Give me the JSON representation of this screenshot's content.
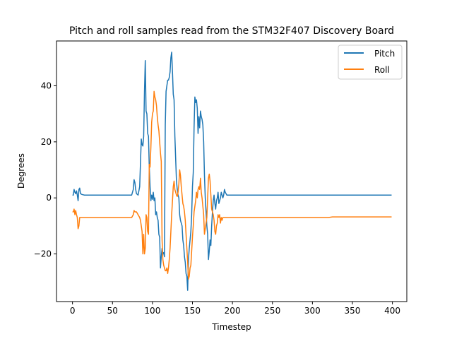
{
  "chart_data": {
    "type": "line",
    "title": "Pitch and roll samples read from the STM32F407 Discovery Board",
    "xlabel": "Timestep",
    "ylabel": "Degrees",
    "xlim": [
      -20,
      418
    ],
    "ylim": [
      -37,
      56
    ],
    "xticks": [
      0,
      50,
      100,
      150,
      200,
      250,
      300,
      350,
      400
    ],
    "yticks": [
      -20,
      0,
      20,
      40
    ],
    "grid": false,
    "legend_position": "upper right",
    "series": [
      {
        "name": "Pitch",
        "color": "#1f77b4",
        "points": [
          [
            0,
            1
          ],
          [
            1,
            1
          ],
          [
            2,
            3
          ],
          [
            3,
            2
          ],
          [
            4,
            1.5
          ],
          [
            5,
            2.5
          ],
          [
            6,
            1
          ],
          [
            7,
            -1
          ],
          [
            8,
            3
          ],
          [
            9,
            3.5
          ],
          [
            10,
            1.5
          ],
          [
            12,
            1.2
          ],
          [
            15,
            1
          ],
          [
            30,
            1
          ],
          [
            50,
            1
          ],
          [
            70,
            1
          ],
          [
            74,
            1
          ],
          [
            76,
            3
          ],
          [
            77,
            6.5
          ],
          [
            78,
            5.5
          ],
          [
            79,
            3
          ],
          [
            80,
            1.5
          ],
          [
            82,
            1
          ],
          [
            84,
            4
          ],
          [
            86,
            21
          ],
          [
            87,
            19
          ],
          [
            88,
            18.5
          ],
          [
            89,
            22
          ],
          [
            90,
            38
          ],
          [
            91,
            49
          ],
          [
            92,
            31
          ],
          [
            93,
            30
          ],
          [
            94,
            23
          ],
          [
            95,
            22
          ],
          [
            96,
            11
          ],
          [
            97,
            4
          ],
          [
            98,
            -1
          ],
          [
            99,
            1
          ],
          [
            100,
            -0.5
          ],
          [
            101,
            2
          ],
          [
            102,
            -1
          ],
          [
            103,
            0
          ],
          [
            104,
            -6
          ],
          [
            105,
            -5
          ],
          [
            106,
            -7
          ],
          [
            107,
            -8
          ],
          [
            108,
            -13
          ],
          [
            109,
            -14
          ],
          [
            110,
            -25
          ],
          [
            111,
            -21
          ],
          [
            112,
            -18
          ],
          [
            113,
            -20
          ],
          [
            114,
            -19.5
          ],
          [
            115,
            -21
          ],
          [
            116,
            26
          ],
          [
            117,
            38
          ],
          [
            118,
            40
          ],
          [
            119,
            42
          ],
          [
            120,
            42
          ],
          [
            121,
            43
          ],
          [
            122,
            45
          ],
          [
            123,
            50
          ],
          [
            124,
            52
          ],
          [
            125,
            45
          ],
          [
            126,
            37
          ],
          [
            127,
            35
          ],
          [
            128,
            22
          ],
          [
            129,
            14
          ],
          [
            130,
            6
          ],
          [
            131,
            3
          ],
          [
            132,
            1
          ],
          [
            133,
            0
          ],
          [
            134,
            -6
          ],
          [
            135,
            -8
          ],
          [
            136,
            -9
          ],
          [
            137,
            -10
          ],
          [
            138,
            -15
          ],
          [
            139,
            -17
          ],
          [
            140,
            -21
          ],
          [
            141,
            -23
          ],
          [
            142,
            -27
          ],
          [
            143,
            -28
          ],
          [
            144,
            -33
          ],
          [
            145,
            -22
          ],
          [
            146,
            -18
          ],
          [
            147,
            -15
          ],
          [
            148,
            -12
          ],
          [
            149,
            -6
          ],
          [
            150,
            4
          ],
          [
            151,
            9
          ],
          [
            152,
            25
          ],
          [
            153,
            36
          ],
          [
            154,
            34
          ],
          [
            155,
            35
          ],
          [
            156,
            32
          ],
          [
            157,
            23
          ],
          [
            158,
            29
          ],
          [
            159,
            25
          ],
          [
            160,
            31
          ],
          [
            161,
            29
          ],
          [
            162,
            28
          ],
          [
            163,
            26
          ],
          [
            164,
            20
          ],
          [
            165,
            8
          ],
          [
            166,
            0
          ],
          [
            167,
            -5
          ],
          [
            168,
            -10
          ],
          [
            169,
            -13
          ],
          [
            170,
            -22
          ],
          [
            171,
            -19
          ],
          [
            172,
            -15
          ],
          [
            173,
            -17
          ],
          [
            174,
            -10
          ],
          [
            175,
            -5
          ],
          [
            176,
            -1
          ],
          [
            177,
            1
          ],
          [
            178,
            -2
          ],
          [
            179,
            -4
          ],
          [
            180,
            -1
          ],
          [
            181,
            0
          ],
          [
            182,
            2
          ],
          [
            183,
            -2
          ],
          [
            184,
            -1
          ],
          [
            185,
            0
          ],
          [
            186,
            2
          ],
          [
            187,
            1
          ],
          [
            188,
            0
          ],
          [
            189,
            1
          ],
          [
            190,
            3
          ],
          [
            191,
            2
          ],
          [
            192,
            1.5
          ],
          [
            193,
            1
          ],
          [
            195,
            1
          ],
          [
            200,
            1
          ],
          [
            220,
            1
          ],
          [
            250,
            1
          ],
          [
            300,
            1
          ],
          [
            320,
            1
          ],
          [
            350,
            1
          ],
          [
            380,
            1
          ],
          [
            399,
            1
          ]
        ]
      },
      {
        "name": "Roll",
        "color": "#ff7f0e",
        "points": [
          [
            0,
            -5
          ],
          [
            1,
            -5
          ],
          [
            2,
            -4
          ],
          [
            3,
            -6
          ],
          [
            4,
            -4.5
          ],
          [
            5,
            -6
          ],
          [
            6,
            -7
          ],
          [
            7,
            -11
          ],
          [
            8,
            -10
          ],
          [
            9,
            -7
          ],
          [
            10,
            -7
          ],
          [
            12,
            -7
          ],
          [
            15,
            -7
          ],
          [
            30,
            -7
          ],
          [
            50,
            -7
          ],
          [
            70,
            -7
          ],
          [
            74,
            -7
          ],
          [
            76,
            -6
          ],
          [
            77,
            -4.5
          ],
          [
            78,
            -5
          ],
          [
            80,
            -5
          ],
          [
            82,
            -6
          ],
          [
            84,
            -7
          ],
          [
            85,
            -8
          ],
          [
            86,
            -10
          ],
          [
            87,
            -12
          ],
          [
            88,
            -20
          ],
          [
            89,
            -13
          ],
          [
            90,
            -20
          ],
          [
            91,
            -18
          ],
          [
            92,
            -6
          ],
          [
            93,
            -7
          ],
          [
            94,
            -12
          ],
          [
            95,
            -13
          ],
          [
            96,
            12
          ],
          [
            97,
            11
          ],
          [
            98,
            18
          ],
          [
            99,
            27
          ],
          [
            100,
            30
          ],
          [
            101,
            31
          ],
          [
            102,
            38
          ],
          [
            103,
            36
          ],
          [
            104,
            35
          ],
          [
            105,
            33
          ],
          [
            106,
            29
          ],
          [
            107,
            26
          ],
          [
            108,
            24
          ],
          [
            109,
            20
          ],
          [
            110,
            16
          ],
          [
            111,
            13
          ],
          [
            112,
            -15
          ],
          [
            113,
            -22
          ],
          [
            114,
            -24
          ],
          [
            115,
            -25
          ],
          [
            116,
            -26
          ],
          [
            117,
            -26
          ],
          [
            118,
            -25
          ],
          [
            119,
            -27
          ],
          [
            120,
            -25
          ],
          [
            121,
            -22
          ],
          [
            122,
            -18
          ],
          [
            123,
            -12
          ],
          [
            124,
            -6
          ],
          [
            125,
            -1
          ],
          [
            126,
            4
          ],
          [
            127,
            6
          ],
          [
            128,
            3
          ],
          [
            129,
            2
          ],
          [
            130,
            1
          ],
          [
            131,
            0.5
          ],
          [
            132,
            2
          ],
          [
            133,
            5
          ],
          [
            134,
            10
          ],
          [
            135,
            8
          ],
          [
            136,
            4
          ],
          [
            137,
            1
          ],
          [
            138,
            -2
          ],
          [
            139,
            -3
          ],
          [
            140,
            -5
          ],
          [
            141,
            -8
          ],
          [
            142,
            -13
          ],
          [
            143,
            -18
          ],
          [
            144,
            -23
          ],
          [
            145,
            -29
          ],
          [
            146,
            -28
          ],
          [
            147,
            -25
          ],
          [
            148,
            -24
          ],
          [
            149,
            -19
          ],
          [
            150,
            -14
          ],
          [
            151,
            -10
          ],
          [
            152,
            -5
          ],
          [
            153,
            -3
          ],
          [
            154,
            -1
          ],
          [
            155,
            2
          ],
          [
            156,
            0
          ],
          [
            157,
            3
          ],
          [
            158,
            4
          ],
          [
            159,
            3
          ],
          [
            160,
            7
          ],
          [
            161,
            2
          ],
          [
            162,
            0
          ],
          [
            163,
            -3
          ],
          [
            164,
            -6
          ],
          [
            165,
            -13
          ],
          [
            166,
            -11
          ],
          [
            167,
            -9
          ],
          [
            168,
            -7
          ],
          [
            169,
            0
          ],
          [
            170,
            7
          ],
          [
            171,
            8.5
          ],
          [
            172,
            6
          ],
          [
            173,
            1
          ],
          [
            174,
            -4
          ],
          [
            175,
            -5
          ],
          [
            176,
            -6
          ],
          [
            177,
            -8
          ],
          [
            178,
            -12
          ],
          [
            179,
            -13
          ],
          [
            180,
            -10
          ],
          [
            181,
            -9
          ],
          [
            182,
            -6
          ],
          [
            183,
            -7
          ],
          [
            184,
            -6
          ],
          [
            185,
            -9
          ],
          [
            186,
            -7
          ],
          [
            187,
            -8
          ],
          [
            188,
            -7
          ],
          [
            189,
            -7
          ],
          [
            195,
            -7
          ],
          [
            200,
            -7
          ],
          [
            220,
            -7
          ],
          [
            250,
            -7
          ],
          [
            280,
            -7
          ],
          [
            300,
            -7
          ],
          [
            320,
            -7
          ],
          [
            325,
            -6.8
          ],
          [
            350,
            -6.8
          ],
          [
            380,
            -6.8
          ],
          [
            399,
            -6.8
          ]
        ]
      }
    ]
  }
}
